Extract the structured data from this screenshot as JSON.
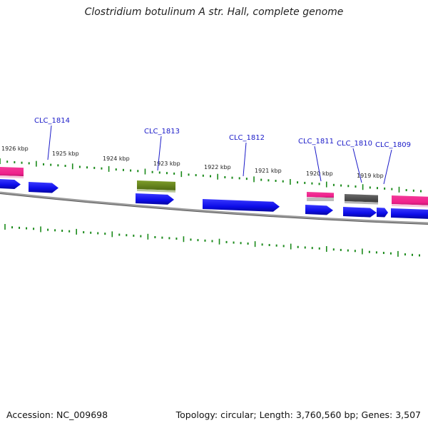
{
  "title": "Clostridium botulinum A str. Hall, complete genome",
  "footer": {
    "accession": "Accession: NC_009698",
    "summary": "Topology: circular; Length: 3,760,560 bp; Genes: 3,507"
  },
  "colors": {
    "cds": "#1010f0",
    "rrna_pink": "#f0208c",
    "olive": "#6b8a1f",
    "dark_gray": "#555555",
    "tick": "#1a8a1a",
    "label": "#1a1ac8",
    "backbone": "#888888"
  },
  "kbp_labels": [
    "1926 kbp",
    "1925 kbp",
    "1924 kbp",
    "1923 kbp",
    "1922 kbp",
    "1921 kbp",
    "1920 kbp",
    "1919 kbp"
  ],
  "gene_labels": [
    "CLC_1814",
    "CLC_1813",
    "CLC_1812",
    "CLC_1811",
    "CLC_1810",
    "CLC_1809"
  ]
}
